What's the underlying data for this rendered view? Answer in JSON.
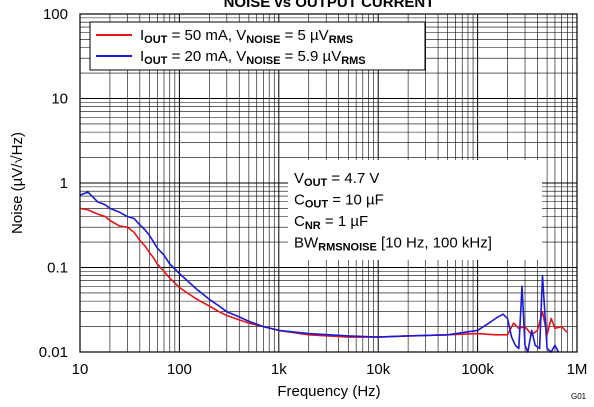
{
  "chart_data": {
    "type": "line",
    "title": "NOISE vs OUTPUT CURRENT",
    "xlabel": "Frequency (Hz)",
    "ylabel": "Noise (µV/√Hz)",
    "xscale": "log",
    "yscale": "log",
    "xlim": [
      10,
      1000000
    ],
    "ylim": [
      0.01,
      100
    ],
    "x_tick_labels": [
      "10",
      "100",
      "1k",
      "10k",
      "100k",
      "1M"
    ],
    "y_tick_labels": [
      "0.01",
      "0.1",
      "1",
      "10",
      "100"
    ],
    "grid": true,
    "legend_position": "top-left",
    "figure_id": "G01",
    "series": [
      {
        "name": "IOUT = 50 mA, VNOISE = 5 µVRMS",
        "legend": {
          "main": "I",
          "s1": "OUT",
          "mid": " = 50 mA, V",
          "s2": "NOISE",
          "mid2": " = 5 µV",
          "s3": "RMS"
        },
        "color": "#e8141c",
        "x": [
          10,
          12,
          15,
          18,
          20,
          25,
          30,
          35,
          40,
          45,
          50,
          55,
          60,
          70,
          80,
          100,
          120,
          150,
          200,
          250,
          300,
          400,
          500,
          700,
          1000,
          2000,
          5000,
          10000,
          20000,
          50000,
          100000,
          150000,
          200000,
          230000,
          260000,
          300000,
          350000,
          400000,
          450000,
          500000,
          550000,
          600000,
          700000,
          800000
        ],
        "y": [
          0.5,
          0.48,
          0.43,
          0.4,
          0.36,
          0.31,
          0.3,
          0.26,
          0.21,
          0.18,
          0.15,
          0.13,
          0.11,
          0.09,
          0.075,
          0.058,
          0.05,
          0.042,
          0.035,
          0.03,
          0.027,
          0.024,
          0.022,
          0.02,
          0.018,
          0.016,
          0.015,
          0.015,
          0.0155,
          0.016,
          0.0165,
          0.016,
          0.016,
          0.022,
          0.019,
          0.02,
          0.016,
          0.018,
          0.03,
          0.016,
          0.025,
          0.019,
          0.02,
          0.017
        ]
      },
      {
        "name": "IOUT = 20 mA, VNOISE = 5.9 µVRMS",
        "legend": {
          "main": "I",
          "s1": "OUT",
          "mid": " = 20 mA, V",
          "s2": "NOISE",
          "mid2": " = 5.9 µV",
          "s3": "RMS"
        },
        "color": "#1a1ad6",
        "x": [
          10,
          12,
          15,
          18,
          20,
          25,
          30,
          35,
          40,
          45,
          50,
          55,
          60,
          70,
          80,
          100,
          120,
          150,
          200,
          250,
          300,
          400,
          500,
          700,
          1000,
          2000,
          5000,
          10000,
          20000,
          50000,
          100000,
          130000,
          160000,
          180000,
          200000,
          220000,
          240000,
          260000,
          280000,
          300000,
          320000,
          350000,
          380000,
          420000,
          450000,
          500000,
          550000,
          600000,
          650000
        ],
        "y": [
          0.72,
          0.78,
          0.6,
          0.55,
          0.5,
          0.45,
          0.4,
          0.38,
          0.32,
          0.28,
          0.24,
          0.2,
          0.17,
          0.14,
          0.11,
          0.085,
          0.07,
          0.055,
          0.042,
          0.035,
          0.03,
          0.026,
          0.023,
          0.02,
          0.018,
          0.0165,
          0.0155,
          0.015,
          0.0155,
          0.016,
          0.018,
          0.022,
          0.026,
          0.028,
          0.025,
          0.015,
          0.012,
          0.011,
          0.06,
          0.012,
          0.01,
          0.018,
          0.012,
          0.011,
          0.08,
          0.011,
          0.01,
          0.012,
          0.01
        ]
      }
    ],
    "annotation": {
      "lines": [
        {
          "main": "V",
          "sub": "OUT",
          "rest": " = 4.7 V"
        },
        {
          "main": "C",
          "sub": "OUT",
          "rest": " = 10 µF"
        },
        {
          "main": "C",
          "sub": "NR",
          "rest": " = 1 µF"
        },
        {
          "main": "BW",
          "sub": "RMSNOISE",
          "rest": " [10 Hz, 100 kHz]"
        }
      ]
    }
  }
}
